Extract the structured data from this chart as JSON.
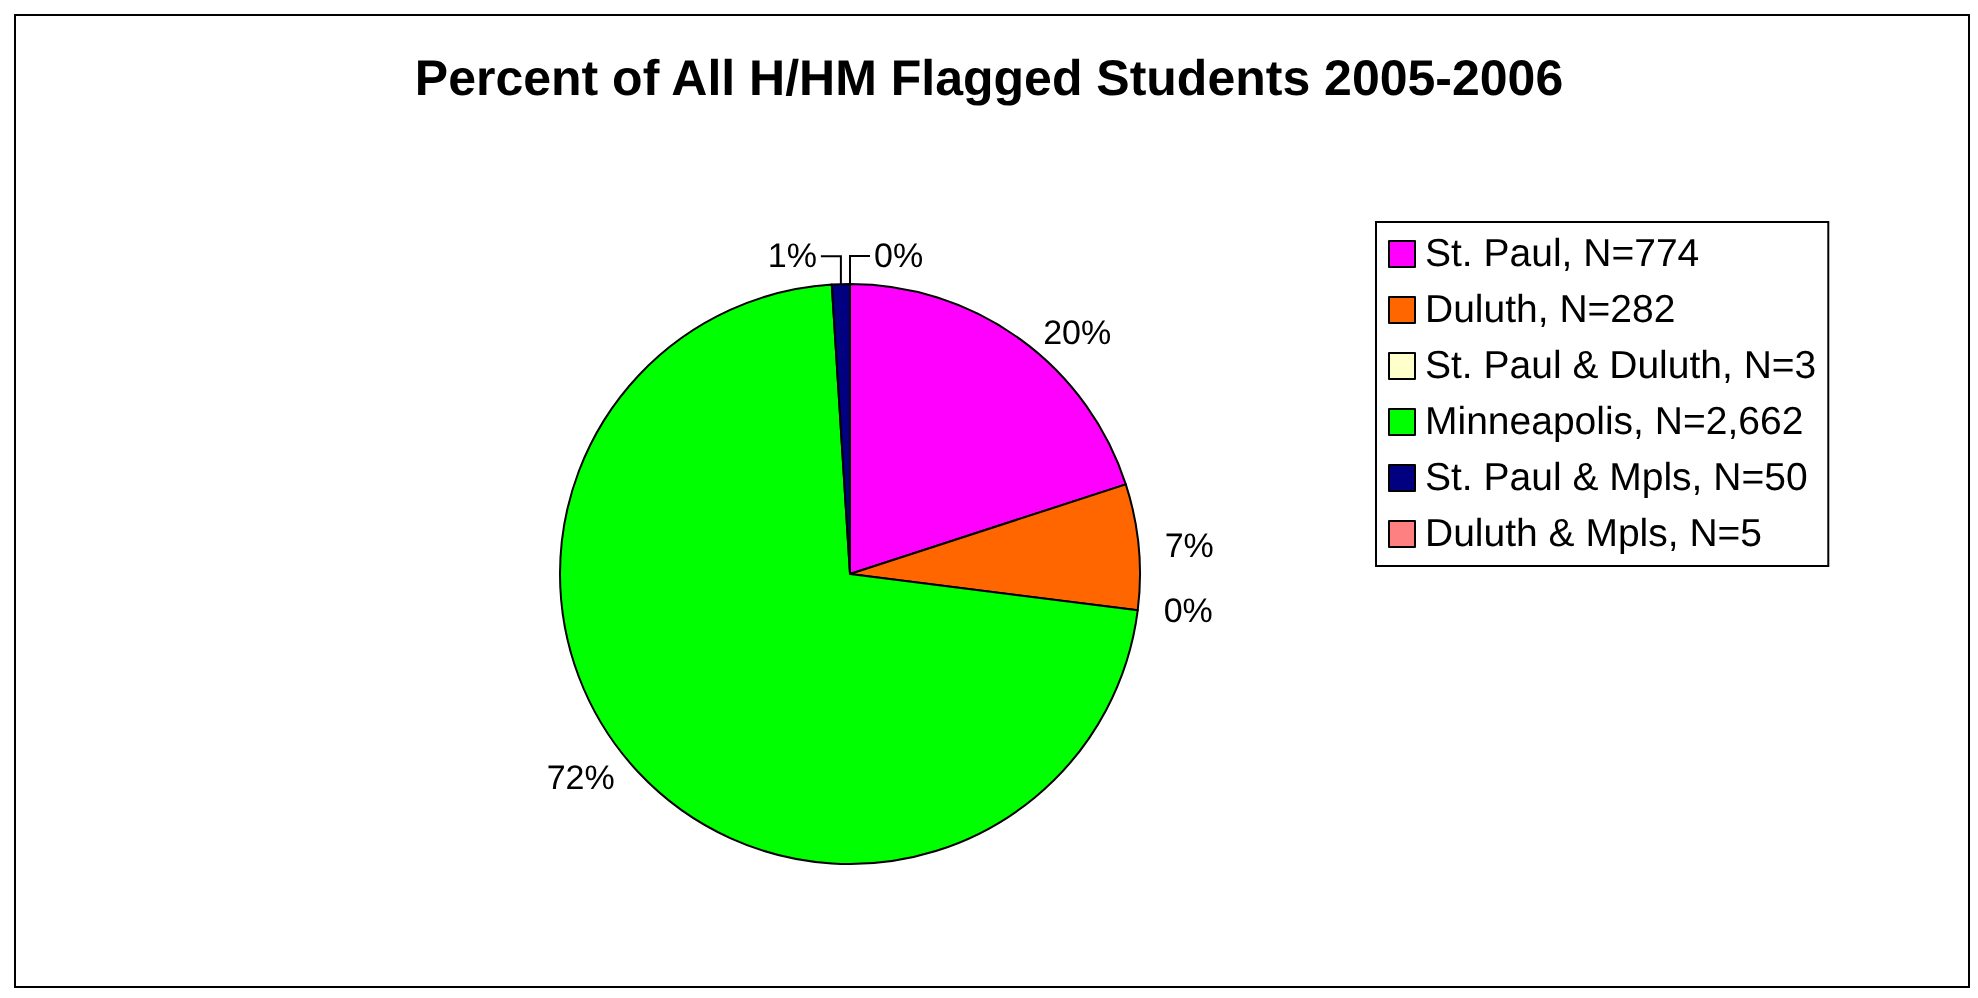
{
  "chart_data": {
    "type": "pie",
    "title": "Percent of All H/HM Flagged Students 2005-2006",
    "categories": [
      "St. Paul, N=774",
      "Duluth, N=282",
      "St. Paul & Duluth, N=3",
      "Minneapolis, N=2,662",
      "St. Paul & Mpls, N=50",
      "Duluth & Mpls, N=5"
    ],
    "values": [
      20,
      7,
      0,
      72,
      1,
      0
    ],
    "colors": [
      "#ff00ff",
      "#ff6600",
      "#ffffcc",
      "#00ff00",
      "#000080",
      "#ff8080"
    ],
    "value_labels": [
      "20%",
      "7%",
      "0%",
      "72%",
      "1%",
      "0%"
    ],
    "legend": "right"
  }
}
